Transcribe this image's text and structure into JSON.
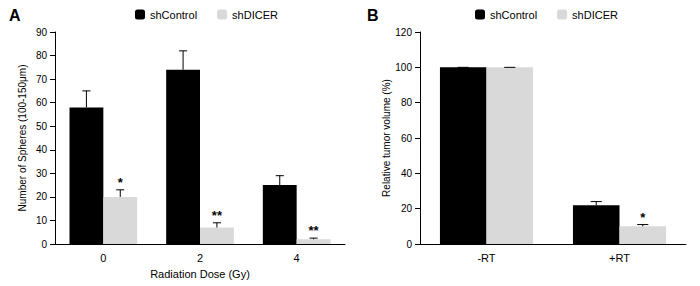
{
  "chart_data": [
    {
      "type": "bar",
      "title": "A",
      "x_label": "Radiation Dose (Gy)",
      "y_label": "Number of Spheres (100-150μm)",
      "categories": [
        "0",
        "2",
        "4"
      ],
      "ylim": [
        0,
        90
      ],
      "yticks": [
        0,
        10,
        20,
        30,
        40,
        50,
        60,
        70,
        80,
        90
      ],
      "grid": false,
      "legend": "top",
      "series": [
        {
          "name": "shControl",
          "color": "#000000",
          "values": [
            58,
            74,
            25
          ],
          "errors": [
            7,
            8,
            4
          ]
        },
        {
          "name": "shDICER",
          "color": "#d9d9d9",
          "values": [
            20,
            7,
            2
          ],
          "errors": [
            3,
            2,
            0.5
          ],
          "annotations": [
            "*",
            "**",
            "**"
          ]
        }
      ]
    },
    {
      "type": "bar",
      "title": "B",
      "y_label": "Relative tumor volume (%)",
      "categories": [
        "-RT",
        "+RT"
      ],
      "ylim": [
        0,
        120
      ],
      "yticks": [
        0,
        20,
        40,
        60,
        80,
        100,
        120
      ],
      "grid": false,
      "legend": "top",
      "series": [
        {
          "name": "shControl",
          "color": "#000000",
          "values": [
            100,
            22
          ],
          "errors": [
            0,
            2
          ]
        },
        {
          "name": "shDICER",
          "color": "#d9d9d9",
          "values": [
            100,
            10
          ],
          "errors": [
            0,
            1
          ],
          "annotations": [
            null,
            "*"
          ]
        }
      ]
    }
  ]
}
